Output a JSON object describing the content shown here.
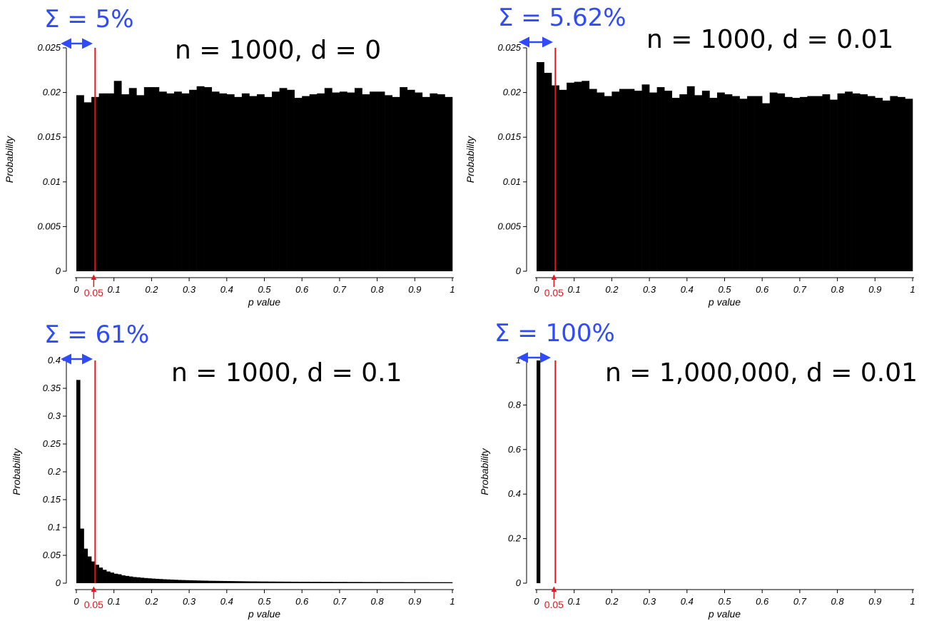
{
  "chart_data": [
    {
      "type": "bar",
      "title": "n = 1000, d = 0",
      "annotation": "Σ = 5%",
      "xlabel": "p value",
      "ylabel": "Probability",
      "xlim": [
        0,
        1
      ],
      "ylim": [
        0,
        0.025
      ],
      "xticks": [
        "0",
        "0.1",
        "0.2",
        "0.3",
        "0.4",
        "0.5",
        "0.6",
        "0.7",
        "0.8",
        "0.9",
        "1"
      ],
      "yticks": [
        "0",
        "0.005",
        "0.01",
        "0.015",
        "0.02",
        "0.025"
      ],
      "threshold": 0.05,
      "threshold_label": "0.05",
      "bin_width": 0.02,
      "values": [
        0.0197,
        0.0189,
        0.0195,
        0.0199,
        0.0199,
        0.0213,
        0.0198,
        0.0205,
        0.0197,
        0.0206,
        0.0206,
        0.0201,
        0.0199,
        0.0201,
        0.0199,
        0.0203,
        0.0207,
        0.0206,
        0.0201,
        0.0199,
        0.0198,
        0.0195,
        0.0199,
        0.0196,
        0.0198,
        0.0195,
        0.0201,
        0.0205,
        0.0203,
        0.0194,
        0.0196,
        0.0198,
        0.0199,
        0.0205,
        0.02,
        0.0201,
        0.02,
        0.0205,
        0.0198,
        0.0201,
        0.0201,
        0.0197,
        0.0195,
        0.0206,
        0.0203,
        0.02,
        0.0195,
        0.0199,
        0.0198,
        0.0195
      ]
    },
    {
      "type": "bar",
      "title": "n = 1000, d = 0.01",
      "annotation": "Σ = 5.62%",
      "xlabel": "p value",
      "ylabel": "Probability",
      "xlim": [
        0,
        1
      ],
      "ylim": [
        0,
        0.025
      ],
      "xticks": [
        "0",
        "0.1",
        "0.2",
        "0.3",
        "0.4",
        "0.5",
        "0.6",
        "0.7",
        "0.8",
        "0.9",
        "1"
      ],
      "yticks": [
        "0",
        "0.005",
        "0.01",
        "0.015",
        "0.02",
        "0.025"
      ],
      "threshold": 0.05,
      "threshold_label": "0.05",
      "bin_width": 0.02,
      "values": [
        0.0234,
        0.0222,
        0.0208,
        0.0203,
        0.0211,
        0.0212,
        0.0213,
        0.0204,
        0.02,
        0.0196,
        0.0201,
        0.0204,
        0.0204,
        0.0202,
        0.0209,
        0.02,
        0.0206,
        0.0202,
        0.0194,
        0.0198,
        0.0207,
        0.0197,
        0.0202,
        0.0194,
        0.02,
        0.0198,
        0.0196,
        0.0193,
        0.0196,
        0.0196,
        0.0188,
        0.02,
        0.0199,
        0.0195,
        0.0194,
        0.0195,
        0.0196,
        0.0196,
        0.0198,
        0.0192,
        0.0199,
        0.0201,
        0.0199,
        0.0198,
        0.0196,
        0.0194,
        0.0191,
        0.0196,
        0.0195,
        0.0193
      ]
    },
    {
      "type": "bar",
      "title": "n = 1000, d = 0.1",
      "annotation": "Σ = 61%",
      "xlabel": "p value",
      "ylabel": "Probability",
      "xlim": [
        0,
        1
      ],
      "ylim": [
        0,
        0.4
      ],
      "xticks": [
        "0",
        "0.1",
        "0.2",
        "0.3",
        "0.4",
        "0.5",
        "0.6",
        "0.7",
        "0.8",
        "0.9",
        "1"
      ],
      "yticks": [
        "0",
        "0.05",
        "0.1",
        "0.15",
        "0.2",
        "0.25",
        "0.3",
        "0.35",
        "0.4"
      ],
      "threshold": 0.05,
      "threshold_label": "0.05",
      "bin_width": 0.01,
      "values": [
        0.365,
        0.098,
        0.062,
        0.048,
        0.039,
        0.033,
        0.028,
        0.024,
        0.021,
        0.019,
        0.017,
        0.016,
        0.014,
        0.013,
        0.012,
        0.011,
        0.0105,
        0.0098,
        0.0092,
        0.0087,
        0.0082,
        0.0078,
        0.0074,
        0.007,
        0.0067,
        0.0064,
        0.0061,
        0.0058,
        0.0056,
        0.0054,
        0.0052,
        0.005,
        0.0048,
        0.0046,
        0.0045,
        0.0043,
        0.0042,
        0.0041,
        0.004,
        0.0039,
        0.0038,
        0.0037,
        0.0036,
        0.0035,
        0.0034,
        0.0033,
        0.0032,
        0.0032,
        0.0031,
        0.003,
        0.003,
        0.0029,
        0.0029,
        0.0028,
        0.0028,
        0.0027,
        0.0027,
        0.0026,
        0.0026,
        0.0025,
        0.0025,
        0.0025,
        0.0024,
        0.0024,
        0.0024,
        0.0023,
        0.0023,
        0.0023,
        0.0022,
        0.0022,
        0.0022,
        0.0022,
        0.0021,
        0.0021,
        0.0021,
        0.0021,
        0.002,
        0.002,
        0.002,
        0.002,
        0.002,
        0.0019,
        0.0019,
        0.0019,
        0.0019,
        0.0019,
        0.0019,
        0.0018,
        0.0018,
        0.0018,
        0.0018,
        0.0018,
        0.0018,
        0.0018,
        0.0017,
        0.0017,
        0.0017,
        0.0017,
        0.0017,
        0.0017
      ]
    },
    {
      "type": "bar",
      "title": "n = 1,000,000, d = 0.01",
      "annotation": "Σ = 100%",
      "xlabel": "p value",
      "ylabel": "Probability",
      "xlim": [
        0,
        1
      ],
      "ylim": [
        0,
        1
      ],
      "xticks": [
        "0",
        "0.1",
        "0.2",
        "0.3",
        "0.4",
        "0.5",
        "0.6",
        "0.7",
        "0.8",
        "0.9",
        "1"
      ],
      "yticks": [
        "0",
        "0.2",
        "0.4",
        "0.6",
        "0.8",
        "1"
      ],
      "threshold": 0.05,
      "threshold_label": "0.05",
      "bin_width": 0.01,
      "values": [
        1.0
      ]
    }
  ],
  "colors": {
    "bars": "#000000",
    "threshold": "#e8141c",
    "annotation": "#2f4bff",
    "axes": "#000000"
  }
}
